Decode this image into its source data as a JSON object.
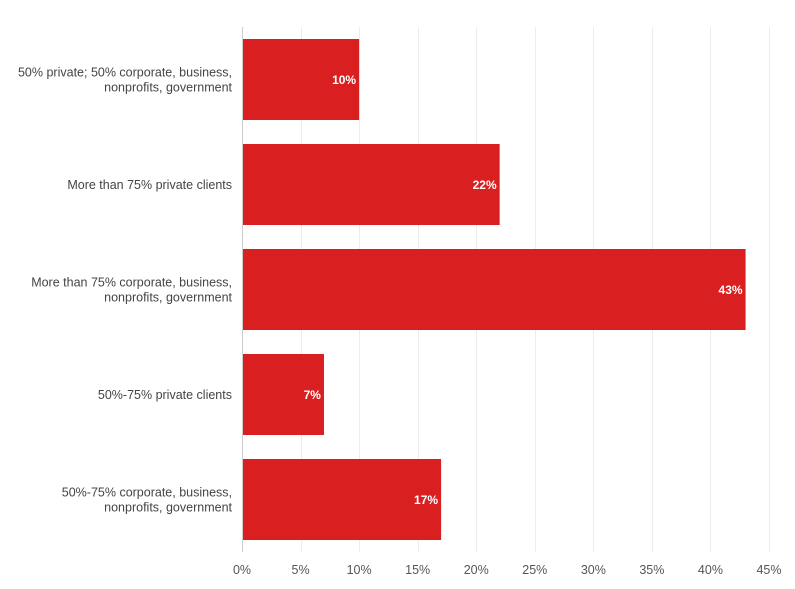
{
  "chart_data": {
    "type": "bar",
    "orientation": "horizontal",
    "categories": [
      [
        "50% private; 50% corporate, business,",
        "nonprofits, government"
      ],
      [
        "More than 75% private clients"
      ],
      [
        "More than 75% corporate, business,",
        "nonprofits, government"
      ],
      [
        "50%-75% private clients"
      ],
      [
        "50%-75% corporate, business,",
        "nonprofits, government"
      ]
    ],
    "values": [
      10,
      22,
      43,
      7,
      17
    ],
    "data_labels": [
      "10%",
      "22%",
      "43%",
      "7%",
      "17%"
    ],
    "x_ticks": [
      0,
      5,
      10,
      15,
      20,
      25,
      30,
      35,
      40,
      45
    ],
    "x_tick_labels": [
      "0%",
      "5%",
      "10%",
      "15%",
      "20%",
      "25%",
      "30%",
      "35%",
      "40%",
      "45%"
    ],
    "xlim": [
      0,
      45
    ],
    "grid": true,
    "legend": "none",
    "bar_color": "#d91f1f"
  }
}
